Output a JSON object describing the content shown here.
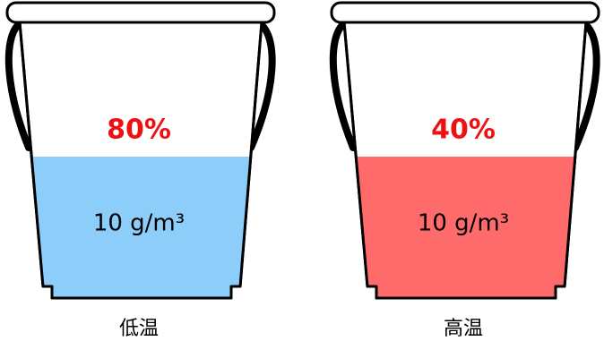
{
  "buckets": [
    {
      "percent": "80%",
      "content": "10 g/m³",
      "caption": "低温",
      "fill_color": "#8ccdfa"
    },
    {
      "percent": "40%",
      "content": "10 g/m³",
      "caption": "高温",
      "fill_color": "#ff6b6b"
    }
  ]
}
